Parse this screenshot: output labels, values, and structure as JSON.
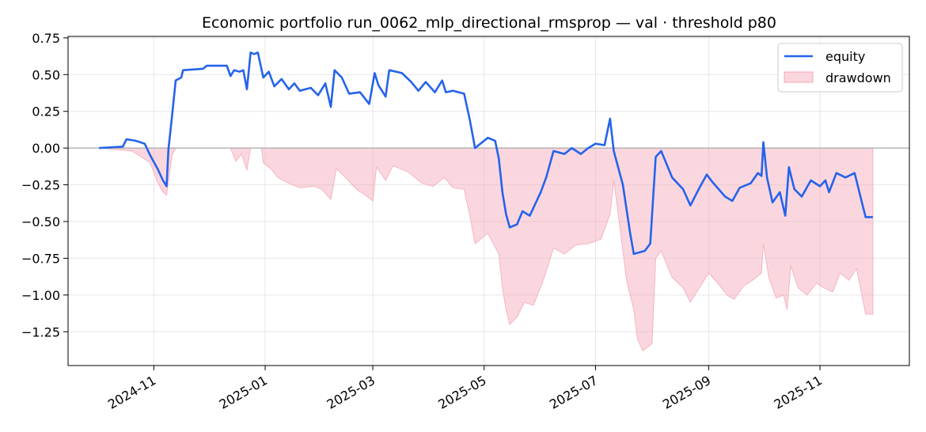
{
  "chart_data": {
    "type": "line",
    "title": "Economic portfolio run_0062_mlp_directional_rmsprop — val · threshold p80",
    "xlabel": "",
    "ylabel": "",
    "x_range": [
      "2024-09-15",
      "2025-12-20"
    ],
    "ylim": [
      -1.48,
      0.76
    ],
    "yticks": [
      0.75,
      0.5,
      0.25,
      0.0,
      -0.25,
      -0.5,
      -0.75,
      -1.0,
      -1.25
    ],
    "ytick_labels": [
      "0.75",
      "0.50",
      "0.25",
      "0.00",
      "−0.25",
      "−0.50",
      "−0.75",
      "−1.00",
      "−1.25"
    ],
    "xticks": [
      "2024-11-01",
      "2025-01-01",
      "2025-03-01",
      "2025-05-01",
      "2025-07-01",
      "2025-09-01",
      "2025-11-01"
    ],
    "xtick_labels": [
      "2024-11",
      "2025-01",
      "2025-03",
      "2025-05",
      "2025-07",
      "2025-09",
      "2025-11"
    ],
    "grid": true,
    "legend_position": "top-right",
    "colors": {
      "equity": "#2563eb",
      "drawdown": "#f4a6b7",
      "zero_line": "#aaaaaa"
    },
    "series": [
      {
        "name": "equity",
        "kind": "line",
        "points": [
          [
            "2024-10-02",
            0.0
          ],
          [
            "2024-10-15",
            0.01
          ],
          [
            "2024-10-17",
            0.06
          ],
          [
            "2024-10-22",
            0.05
          ],
          [
            "2024-10-27",
            0.03
          ],
          [
            "2024-10-30",
            -0.05
          ],
          [
            "2024-11-03",
            -0.14
          ],
          [
            "2024-11-06",
            -0.22
          ],
          [
            "2024-11-08",
            -0.26
          ],
          [
            "2024-11-09",
            -0.01
          ],
          [
            "2024-11-11",
            0.22
          ],
          [
            "2024-11-13",
            0.46
          ],
          [
            "2024-11-16",
            0.48
          ],
          [
            "2024-11-17",
            0.53
          ],
          [
            "2024-11-28",
            0.54
          ],
          [
            "2024-11-30",
            0.56
          ],
          [
            "2024-12-11",
            0.56
          ],
          [
            "2024-12-13",
            0.49
          ],
          [
            "2024-12-15",
            0.53
          ],
          [
            "2024-12-18",
            0.52
          ],
          [
            "2024-12-20",
            0.53
          ],
          [
            "2024-12-22",
            0.4
          ],
          [
            "2024-12-24",
            0.65
          ],
          [
            "2024-12-26",
            0.64
          ],
          [
            "2024-12-28",
            0.65
          ],
          [
            "2024-12-31",
            0.48
          ],
          [
            "2025-01-03",
            0.52
          ],
          [
            "2025-01-06",
            0.42
          ],
          [
            "2025-01-10",
            0.47
          ],
          [
            "2025-01-14",
            0.4
          ],
          [
            "2025-01-17",
            0.44
          ],
          [
            "2025-01-20",
            0.39
          ],
          [
            "2025-01-26",
            0.41
          ],
          [
            "2025-01-30",
            0.36
          ],
          [
            "2025-02-03",
            0.44
          ],
          [
            "2025-02-06",
            0.28
          ],
          [
            "2025-02-08",
            0.53
          ],
          [
            "2025-02-12",
            0.48
          ],
          [
            "2025-02-16",
            0.37
          ],
          [
            "2025-02-22",
            0.38
          ],
          [
            "2025-02-27",
            0.3
          ],
          [
            "2025-03-02",
            0.51
          ],
          [
            "2025-03-04",
            0.43
          ],
          [
            "2025-03-08",
            0.35
          ],
          [
            "2025-03-10",
            0.53
          ],
          [
            "2025-03-17",
            0.51
          ],
          [
            "2025-03-22",
            0.45
          ],
          [
            "2025-03-26",
            0.39
          ],
          [
            "2025-03-30",
            0.45
          ],
          [
            "2025-04-04",
            0.38
          ],
          [
            "2025-04-08",
            0.46
          ],
          [
            "2025-04-10",
            0.38
          ],
          [
            "2025-04-14",
            0.39
          ],
          [
            "2025-04-20",
            0.37
          ],
          [
            "2025-04-23",
            0.2
          ],
          [
            "2025-04-26",
            0.0
          ],
          [
            "2025-05-03",
            0.07
          ],
          [
            "2025-05-07",
            0.05
          ],
          [
            "2025-05-09",
            -0.07
          ],
          [
            "2025-05-11",
            -0.3
          ],
          [
            "2025-05-13",
            -0.45
          ],
          [
            "2025-05-15",
            -0.54
          ],
          [
            "2025-05-19",
            -0.52
          ],
          [
            "2025-05-22",
            -0.43
          ],
          [
            "2025-05-26",
            -0.46
          ],
          [
            "2025-06-01",
            -0.3
          ],
          [
            "2025-06-04",
            -0.2
          ],
          [
            "2025-06-08",
            -0.02
          ],
          [
            "2025-06-14",
            -0.04
          ],
          [
            "2025-06-18",
            0.0
          ],
          [
            "2025-06-23",
            -0.04
          ],
          [
            "2025-06-27",
            0.0
          ],
          [
            "2025-07-01",
            0.03
          ],
          [
            "2025-07-06",
            0.02
          ],
          [
            "2025-07-09",
            0.2
          ],
          [
            "2025-07-11",
            -0.02
          ],
          [
            "2025-07-16",
            -0.25
          ],
          [
            "2025-07-20",
            -0.58
          ],
          [
            "2025-07-22",
            -0.72
          ],
          [
            "2025-07-28",
            -0.7
          ],
          [
            "2025-07-31",
            -0.65
          ],
          [
            "2025-08-03",
            -0.06
          ],
          [
            "2025-08-06",
            -0.02
          ],
          [
            "2025-08-12",
            -0.2
          ],
          [
            "2025-08-18",
            -0.28
          ],
          [
            "2025-08-22",
            -0.39
          ],
          [
            "2025-08-27",
            -0.27
          ],
          [
            "2025-08-31",
            -0.18
          ],
          [
            "2025-09-03",
            -0.23
          ],
          [
            "2025-09-10",
            -0.33
          ],
          [
            "2025-09-14",
            -0.36
          ],
          [
            "2025-09-18",
            -0.27
          ],
          [
            "2025-09-24",
            -0.24
          ],
          [
            "2025-09-28",
            -0.17
          ],
          [
            "2025-09-30",
            -0.19
          ],
          [
            "2025-10-01",
            0.04
          ],
          [
            "2025-10-03",
            -0.2
          ],
          [
            "2025-10-06",
            -0.37
          ],
          [
            "2025-10-10",
            -0.3
          ],
          [
            "2025-10-13",
            -0.46
          ],
          [
            "2025-10-15",
            -0.13
          ],
          [
            "2025-10-18",
            -0.28
          ],
          [
            "2025-10-22",
            -0.33
          ],
          [
            "2025-10-27",
            -0.22
          ],
          [
            "2025-11-01",
            -0.26
          ],
          [
            "2025-11-04",
            -0.22
          ],
          [
            "2025-11-06",
            -0.3
          ],
          [
            "2025-11-10",
            -0.17
          ],
          [
            "2025-11-15",
            -0.2
          ],
          [
            "2025-11-20",
            -0.17
          ],
          [
            "2025-11-23",
            -0.32
          ],
          [
            "2025-11-26",
            -0.47
          ],
          [
            "2025-11-30",
            -0.47
          ]
        ]
      },
      {
        "name": "drawdown",
        "kind": "area",
        "points": [
          [
            "2024-10-02",
            0.0
          ],
          [
            "2024-10-20",
            -0.02
          ],
          [
            "2024-10-24",
            -0.05
          ],
          [
            "2024-10-30",
            -0.1
          ],
          [
            "2024-11-03",
            -0.23
          ],
          [
            "2024-11-06",
            -0.3
          ],
          [
            "2024-11-08",
            -0.32
          ],
          [
            "2024-11-11",
            -0.05
          ],
          [
            "2024-11-13",
            0.0
          ],
          [
            "2024-12-13",
            0.0
          ],
          [
            "2024-12-16",
            -0.09
          ],
          [
            "2024-12-19",
            -0.04
          ],
          [
            "2024-12-22",
            -0.15
          ],
          [
            "2024-12-24",
            0.0
          ],
          [
            "2024-12-30",
            0.0
          ],
          [
            "2024-12-31",
            -0.1
          ],
          [
            "2025-01-04",
            -0.14
          ],
          [
            "2025-01-08",
            -0.2
          ],
          [
            "2025-01-14",
            -0.24
          ],
          [
            "2025-01-20",
            -0.27
          ],
          [
            "2025-01-28",
            -0.26
          ],
          [
            "2025-02-01",
            -0.28
          ],
          [
            "2025-02-06",
            -0.35
          ],
          [
            "2025-02-09",
            -0.14
          ],
          [
            "2025-02-14",
            -0.2
          ],
          [
            "2025-02-20",
            -0.28
          ],
          [
            "2025-02-26",
            -0.33
          ],
          [
            "2025-03-01",
            -0.36
          ],
          [
            "2025-03-03",
            -0.13
          ],
          [
            "2025-03-08",
            -0.22
          ],
          [
            "2025-03-12",
            -0.12
          ],
          [
            "2025-03-20",
            -0.16
          ],
          [
            "2025-03-28",
            -0.24
          ],
          [
            "2025-04-03",
            -0.26
          ],
          [
            "2025-04-09",
            -0.2
          ],
          [
            "2025-04-14",
            -0.27
          ],
          [
            "2025-04-20",
            -0.28
          ],
          [
            "2025-04-23",
            -0.45
          ],
          [
            "2025-04-26",
            -0.65
          ],
          [
            "2025-05-03",
            -0.58
          ],
          [
            "2025-05-09",
            -0.72
          ],
          [
            "2025-05-11",
            -0.95
          ],
          [
            "2025-05-13",
            -1.1
          ],
          [
            "2025-05-15",
            -1.2
          ],
          [
            "2025-05-19",
            -1.15
          ],
          [
            "2025-05-23",
            -1.05
          ],
          [
            "2025-05-28",
            -1.07
          ],
          [
            "2025-06-03",
            -0.88
          ],
          [
            "2025-06-08",
            -0.68
          ],
          [
            "2025-06-14",
            -0.72
          ],
          [
            "2025-06-20",
            -0.66
          ],
          [
            "2025-06-27",
            -0.65
          ],
          [
            "2025-07-04",
            -0.62
          ],
          [
            "2025-07-09",
            -0.45
          ],
          [
            "2025-07-11",
            -0.22
          ],
          [
            "2025-07-14",
            -0.5
          ],
          [
            "2025-07-18",
            -0.9
          ],
          [
            "2025-07-22",
            -1.1
          ],
          [
            "2025-07-24",
            -1.3
          ],
          [
            "2025-07-27",
            -1.38
          ],
          [
            "2025-08-01",
            -1.33
          ],
          [
            "2025-08-03",
            -0.75
          ],
          [
            "2025-08-06",
            -0.7
          ],
          [
            "2025-08-12",
            -0.88
          ],
          [
            "2025-08-18",
            -0.95
          ],
          [
            "2025-08-22",
            -1.05
          ],
          [
            "2025-08-28",
            -0.93
          ],
          [
            "2025-09-01",
            -0.85
          ],
          [
            "2025-09-06",
            -0.92
          ],
          [
            "2025-09-11",
            -1.0
          ],
          [
            "2025-09-15",
            -1.03
          ],
          [
            "2025-09-20",
            -0.94
          ],
          [
            "2025-09-25",
            -0.9
          ],
          [
            "2025-09-30",
            -0.85
          ],
          [
            "2025-10-01",
            -0.65
          ],
          [
            "2025-10-04",
            -0.88
          ],
          [
            "2025-10-08",
            -1.02
          ],
          [
            "2025-10-12",
            -1.0
          ],
          [
            "2025-10-14",
            -1.1
          ],
          [
            "2025-10-16",
            -0.8
          ],
          [
            "2025-10-20",
            -0.95
          ],
          [
            "2025-10-25",
            -1.0
          ],
          [
            "2025-10-30",
            -0.92
          ],
          [
            "2025-11-03",
            -0.95
          ],
          [
            "2025-11-08",
            -0.98
          ],
          [
            "2025-11-12",
            -0.85
          ],
          [
            "2025-11-17",
            -0.9
          ],
          [
            "2025-11-21",
            -0.82
          ],
          [
            "2025-11-24",
            -1.0
          ],
          [
            "2025-11-26",
            -1.13
          ],
          [
            "2025-11-30",
            -1.13
          ]
        ]
      }
    ]
  }
}
